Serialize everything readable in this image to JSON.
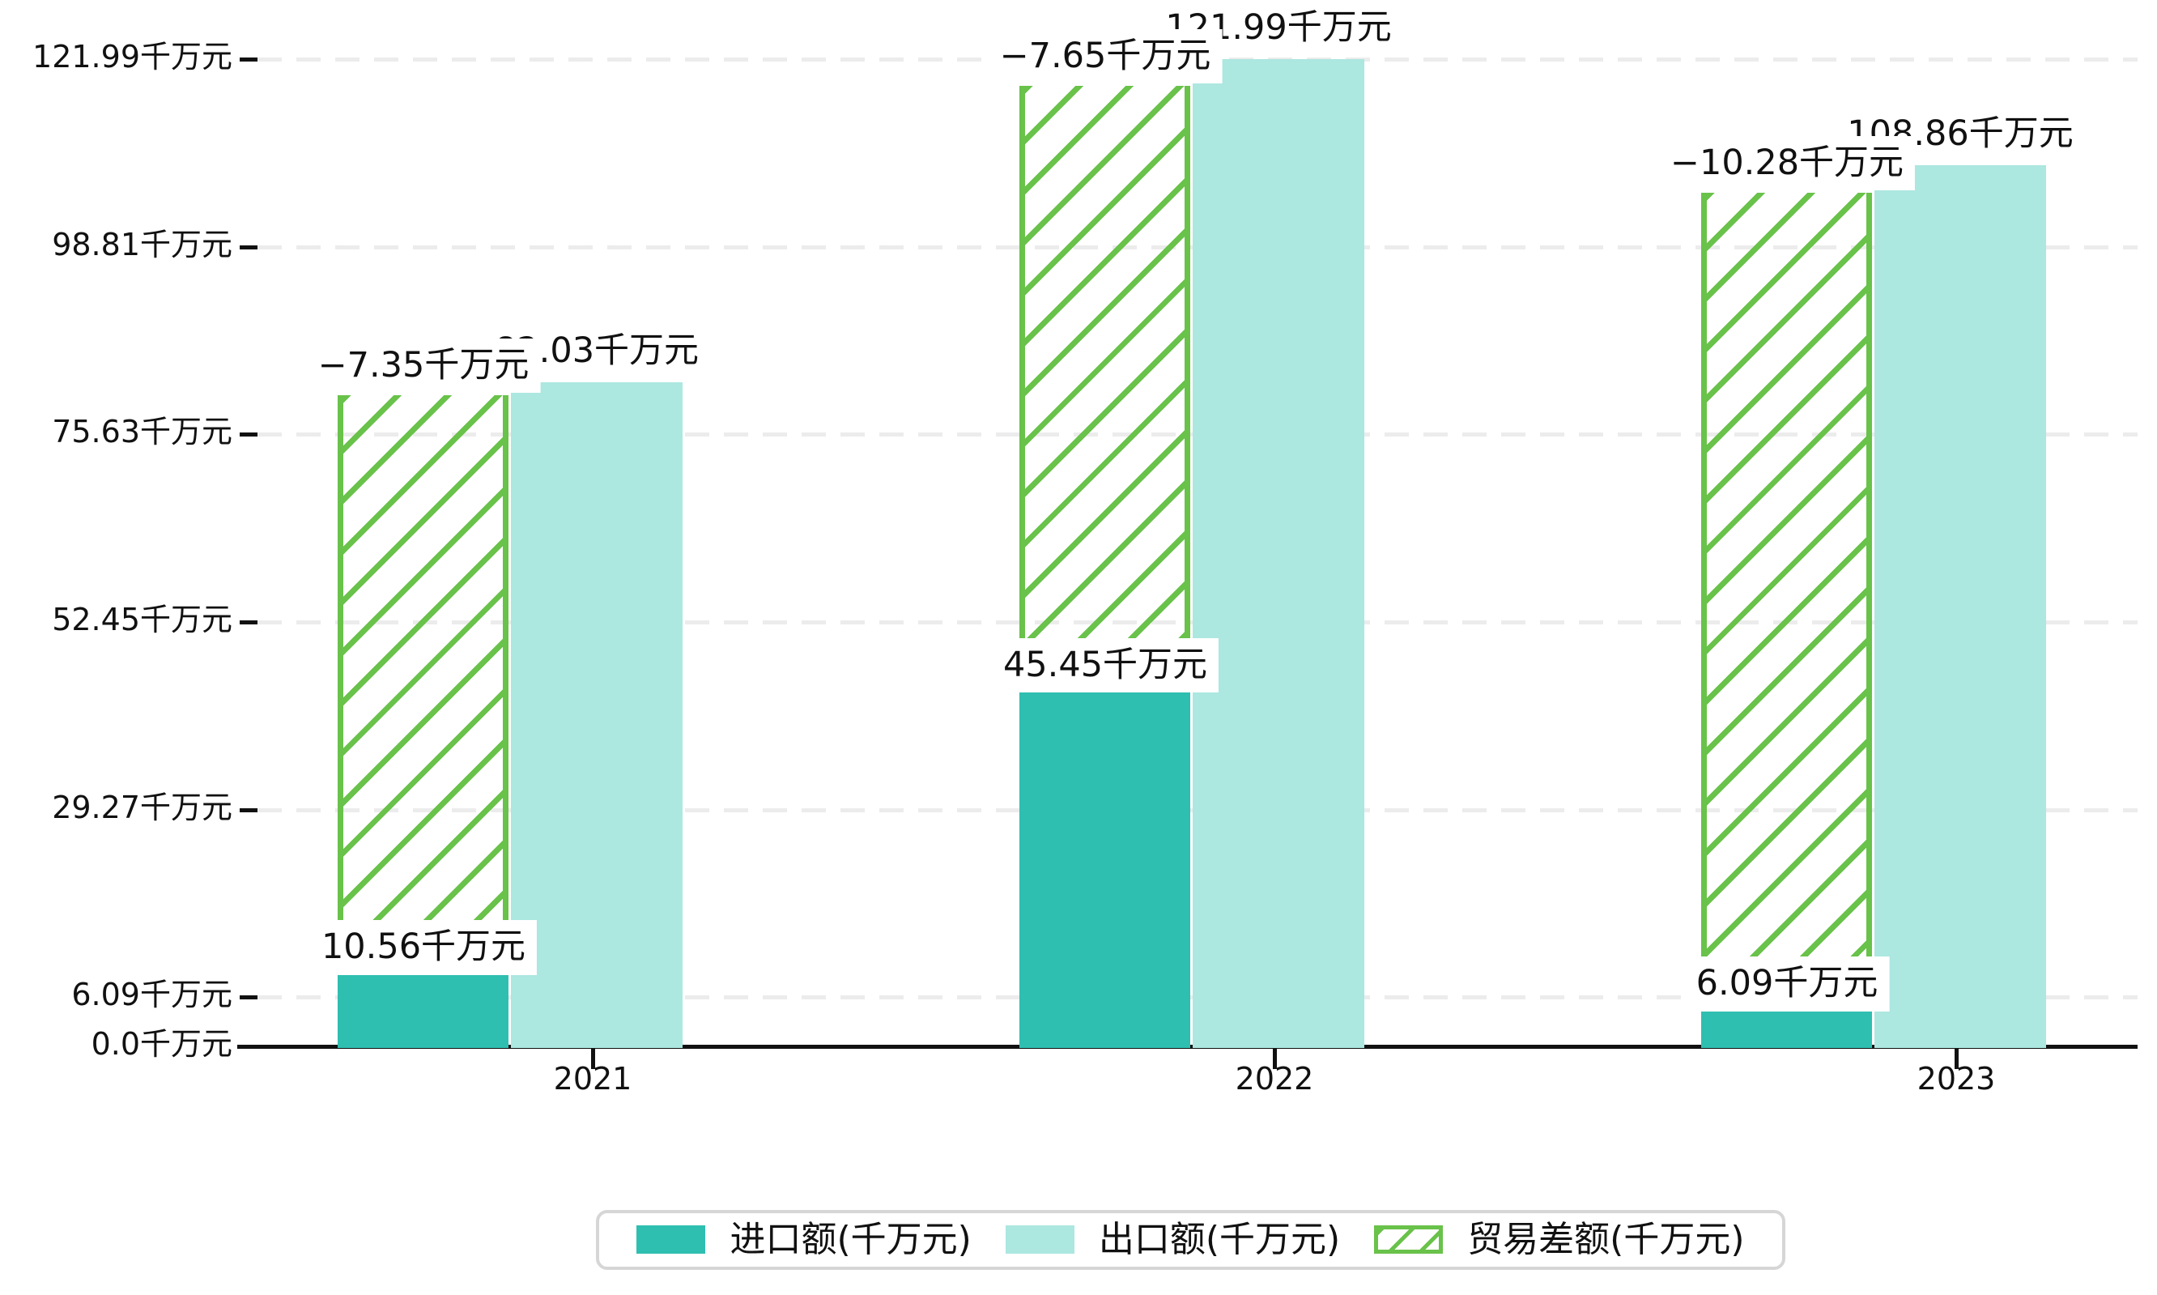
{
  "chart_data": {
    "type": "bar",
    "title": "",
    "unit": "千万元",
    "categories": [
      "2021",
      "2022",
      "2023"
    ],
    "series": [
      {
        "name": "进口额(千万元)",
        "role": "import",
        "color": "#2fbfb0",
        "values": [
          10.56,
          45.45,
          6.09
        ],
        "data_labels": [
          "10.56千万元",
          "45.45千万元",
          "6.09千万元"
        ]
      },
      {
        "name": "出口额(千万元)",
        "role": "export",
        "color": "#ace7e0",
        "values": [
          82.03,
          121.99,
          108.86
        ],
        "data_labels": [
          "82.03千万元",
          "121.99千万元",
          "108.86千万元"
        ]
      },
      {
        "name": "贸易差额(千万元)",
        "role": "trade-balance",
        "color": "#69c24a",
        "hatch": "/",
        "values": [
          -7.35,
          -7.65,
          -10.28
        ],
        "data_labels": [
          "−7.35千万元",
          "−7.65千万元",
          "−10.28千万元"
        ],
        "bar_spans_value_units": [
          [
            15.6,
            80.5
          ],
          [
            50.4,
            118.7
          ],
          [
            11.1,
            105.5
          ]
        ]
      }
    ],
    "x_axis": {
      "tick_labels": [
        "2021",
        "2022",
        "2023"
      ]
    },
    "y_axis": {
      "unit": "千万元",
      "ticks": [
        0.0,
        6.09,
        29.27,
        52.45,
        75.63,
        98.81,
        121.99
      ],
      "tick_labels": [
        "0.0千万元",
        "6.09千万元",
        "29.27千万元",
        "52.45千万元",
        "75.63千万元",
        "98.81千万元",
        "121.99千万元"
      ],
      "ylim": [
        0,
        129.3
      ],
      "gridlines": "dashed"
    },
    "legend": {
      "position": "bottom-center",
      "entries": [
        {
          "label": "进口额(千万元)",
          "swatch": "solid",
          "color": "#2fbfb0"
        },
        {
          "label": "出口额(千万元)",
          "swatch": "solid",
          "color": "#ace7e0"
        },
        {
          "label": "贸易差额(千万元)",
          "swatch": "hatched",
          "color": "#69c24a"
        }
      ]
    }
  },
  "colors": {
    "import_bar": "#2fbfb0",
    "export_bar": "#ace7e0",
    "balance_hatch": "#69c24a",
    "gridline": "#ececec",
    "axis": "#111111",
    "legend_border": "#d6d6d6",
    "label_text": "#111111",
    "background": "#ffffff"
  }
}
